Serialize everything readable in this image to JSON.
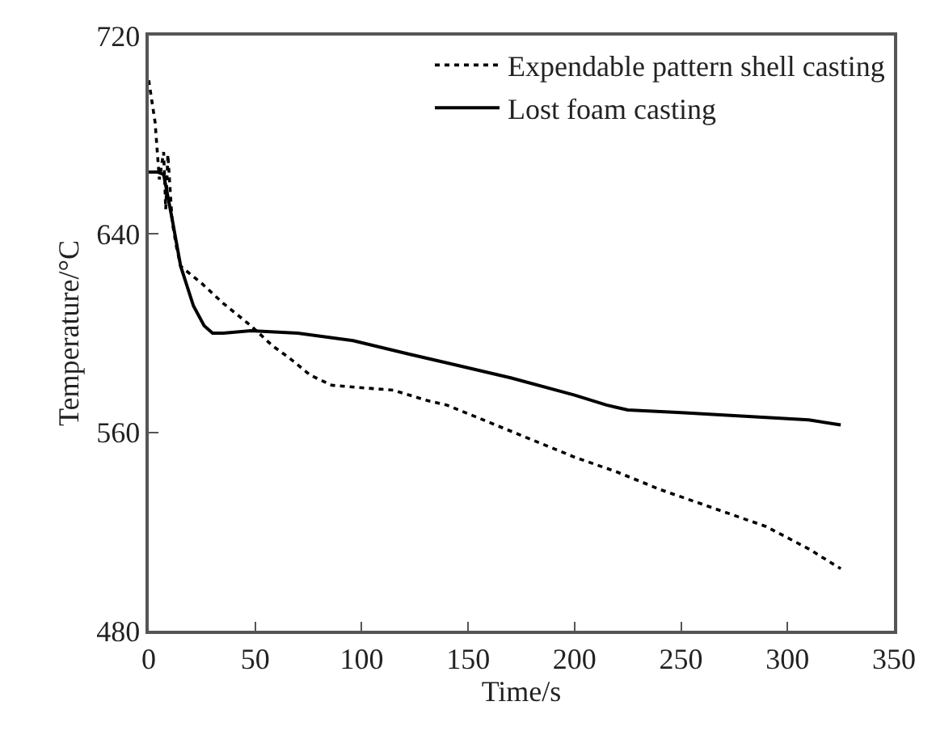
{
  "chart_data": {
    "type": "line",
    "xlabel": "Time/s",
    "ylabel": "Temperature/°C",
    "xlim": [
      0,
      350
    ],
    "xticks": [
      0,
      50,
      100,
      150,
      200,
      250,
      300,
      350
    ],
    "ylim": [
      480,
      720
    ],
    "yticks": [
      480,
      560,
      640,
      720
    ],
    "legend": "top right",
    "marker": "none",
    "series": [
      {
        "name": "Expendable pattern shell casting",
        "color": "#000000",
        "line_style": "dotted",
        "x": [
          0,
          3,
          5,
          7,
          8,
          9,
          11,
          13,
          15,
          25,
          35,
          48,
          58,
          66,
          76,
          86,
          100,
          115,
          130,
          140,
          160,
          180,
          200,
          220,
          240,
          250,
          270,
          290,
          310,
          325
        ],
        "values": [
          702,
          685,
          662,
          673,
          650,
          672,
          645,
          635,
          627,
          620,
          612,
          603,
          595,
          590,
          583,
          579,
          578,
          577,
          573,
          571,
          564,
          557,
          550,
          544,
          537,
          534,
          528,
          522,
          513,
          505
        ]
      },
      {
        "name": "Lost foam casting",
        "color": "#000000",
        "line_style": "solid",
        "x": [
          0,
          4,
          7,
          11,
          15,
          21,
          26,
          30,
          35,
          48,
          70,
          96,
          120,
          140,
          170,
          200,
          215,
          225,
          250,
          290,
          310,
          325
        ],
        "values": [
          665,
          665,
          664,
          646,
          627,
          611,
          603,
          600,
          600,
          601,
          600,
          597,
          592,
          588,
          582,
          575,
          571,
          569,
          568,
          566,
          565,
          563
        ]
      }
    ]
  }
}
